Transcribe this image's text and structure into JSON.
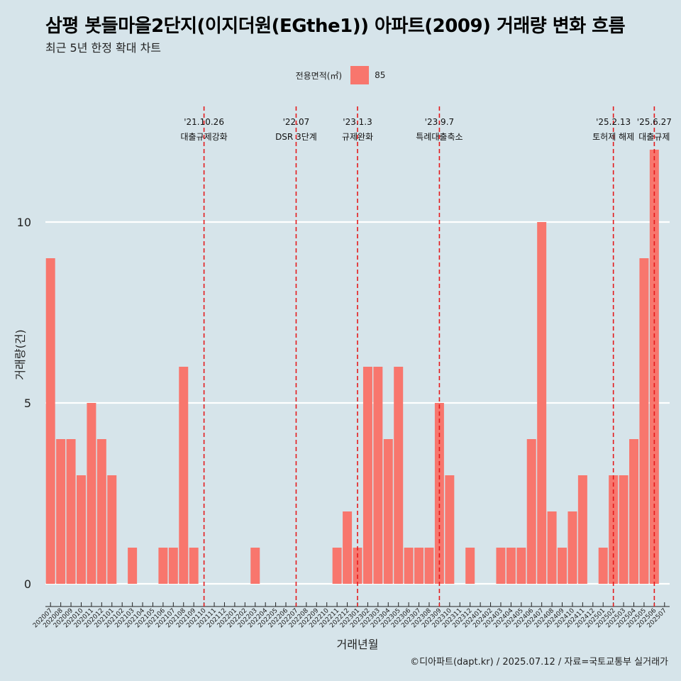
{
  "title": "삼평 봇들마을2단지(이지더원(EGthe1)) 아파트(2009) 거래량 변화 흐름",
  "subtitle": "최근 5년 한정 확대 차트",
  "caption": "©디아파트(dapt.kr) / 2025.07.12 / 자료=국토교통부 실거래가",
  "legend": {
    "title": "전용면적(㎡)",
    "items": [
      {
        "label": "85",
        "color": "#f8766d"
      }
    ]
  },
  "colors": {
    "background": "#d6e4ea",
    "bar": "#f8766d",
    "event_line": "#e41a1c",
    "grid": "#ffffff"
  },
  "chart_data": {
    "type": "bar",
    "xlabel": "거래년월",
    "ylabel": "거래량(건)",
    "ylim": [
      -0.5,
      12.6
    ],
    "yticks": [
      0,
      5,
      10
    ],
    "grid": true,
    "legend_position": "top",
    "categories": [
      "202007",
      "202008",
      "202009",
      "202010",
      "202011",
      "202012",
      "202101",
      "202102",
      "202103",
      "202104",
      "202105",
      "202106",
      "202107",
      "202108",
      "202109",
      "202110",
      "202111",
      "202112",
      "202201",
      "202202",
      "202203",
      "202204",
      "202205",
      "202206",
      "202207",
      "202208",
      "202209",
      "202210",
      "202211",
      "202212",
      "202301",
      "202302",
      "202303",
      "202304",
      "202305",
      "202306",
      "202307",
      "202308",
      "202309",
      "202310",
      "202311",
      "202312",
      "202401",
      "202402",
      "202403",
      "202404",
      "202405",
      "202406",
      "202407",
      "202408",
      "202409",
      "202410",
      "202411",
      "202412",
      "202501",
      "202502",
      "202503",
      "202504",
      "202505",
      "202506",
      "202507"
    ],
    "series": [
      {
        "name": "85",
        "values": [
          9,
          4,
          4,
          3,
          5,
          4,
          3,
          0,
          1,
          0,
          0,
          1,
          1,
          6,
          1,
          0,
          0,
          0,
          0,
          0,
          1,
          0,
          0,
          0,
          0,
          0,
          0,
          0,
          1,
          2,
          1,
          6,
          6,
          4,
          6,
          1,
          1,
          1,
          5,
          3,
          0,
          1,
          0,
          0,
          1,
          1,
          1,
          4,
          10,
          2,
          1,
          2,
          3,
          0,
          1,
          3,
          3,
          4,
          9,
          12,
          0
        ]
      }
    ],
    "events": [
      {
        "category": "202110",
        "date": "'21.10.26",
        "label": "대출규제강화"
      },
      {
        "category": "202207",
        "date": "'22.07",
        "label": "DSR 3단계"
      },
      {
        "category": "202301",
        "date": "'23.1.3",
        "label": "규제완화"
      },
      {
        "category": "202309",
        "date": "'23.9.7",
        "label": "특례대출축소"
      },
      {
        "category": "202502",
        "date": "'25.2.13",
        "label": "토허제 해제"
      },
      {
        "category": "202506",
        "date": "'25.6.27",
        "label": "대출규제"
      }
    ]
  }
}
